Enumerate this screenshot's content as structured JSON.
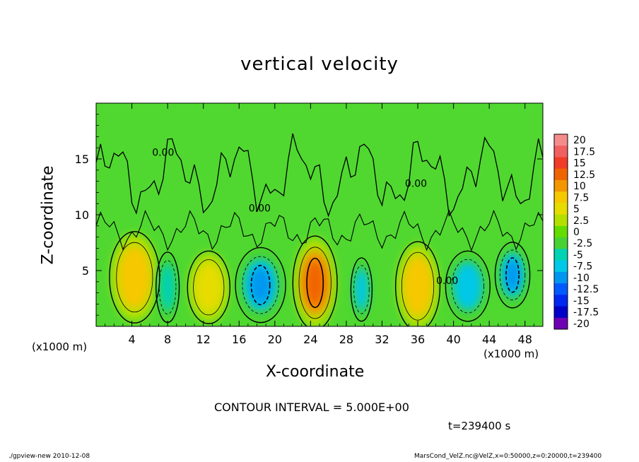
{
  "chart_data": {
    "type": "heatmap",
    "title": "vertical velocity",
    "xlabel": "X-coordinate",
    "ylabel": "Z-coordinate",
    "x_unit_label": "(x1000 m)",
    "xlim": [
      0,
      50
    ],
    "ylim": [
      0,
      20
    ],
    "x_ticks": [
      4,
      8,
      12,
      16,
      20,
      24,
      28,
      32,
      36,
      40,
      44,
      48
    ],
    "y_ticks": [
      5,
      10,
      15
    ],
    "contour_labels": [
      {
        "text": "0.00",
        "x": 7.5,
        "z": 15.3
      },
      {
        "text": "0.00",
        "x": 18.3,
        "z": 10.3
      },
      {
        "text": "0.00",
        "x": 35.8,
        "z": 12.5
      },
      {
        "text": "0.00",
        "x": 39.3,
        "z": 3.8
      }
    ],
    "cells": [
      {
        "x": 4.3,
        "z": 4.4,
        "rx": 2.6,
        "rz": 3.9,
        "value": 7.5,
        "peak": 8
      },
      {
        "x": 8.0,
        "z": 3.5,
        "rx": 1.2,
        "rz": 3.0,
        "value": -6,
        "peak": -6
      },
      {
        "x": 12.6,
        "z": 3.5,
        "rx": 2.2,
        "rz": 3.1,
        "value": 6,
        "peak": 7
      },
      {
        "x": 18.4,
        "z": 3.7,
        "rx": 2.6,
        "rz": 3.2,
        "value": -8,
        "peak": -11
      },
      {
        "x": 24.5,
        "z": 3.9,
        "rx": 2.3,
        "rz": 4.0,
        "value": 11,
        "peak": 13
      },
      {
        "x": 29.7,
        "z": 3.3,
        "rx": 1.1,
        "rz": 2.7,
        "value": -7,
        "peak": -9
      },
      {
        "x": 36.0,
        "z": 3.6,
        "rx": 2.3,
        "rz": 3.8,
        "value": 8,
        "peak": 9
      },
      {
        "x": 41.6,
        "z": 3.6,
        "rx": 2.3,
        "rz": 3.0,
        "value": -7,
        "peak": -7
      },
      {
        "x": 46.6,
        "z": 4.6,
        "rx": 1.8,
        "rz": 2.8,
        "value": -8,
        "peak": -10
      }
    ],
    "colorbar": {
      "labels": [
        "20",
        "17.5",
        "15",
        "12.5",
        "10",
        "7.5",
        "5",
        "2.5",
        "0",
        "-2.5",
        "-5",
        "-7.5",
        "-10",
        "-12.5",
        "-15",
        "-17.5",
        "-20"
      ],
      "colors": [
        "#f58c8c",
        "#f06060",
        "#f03c28",
        "#f06400",
        "#f49600",
        "#f6c800",
        "#e6dc00",
        "#b4e000",
        "#64dc00",
        "#46d232",
        "#00d2b4",
        "#00c8e6",
        "#0096f0",
        "#005aff",
        "#0028f0",
        "#0000c8",
        "#6e00b4"
      ]
    },
    "contour_interval": "CONTOUR INTERVAL = 5.000E+00",
    "time": "t=239400 s",
    "footer_left": "./gpview-new  2010-12-08",
    "footer_right": "MarsCond_VelZ.nc@VelZ,x=0:50000,z=0:20000,t=239400"
  }
}
